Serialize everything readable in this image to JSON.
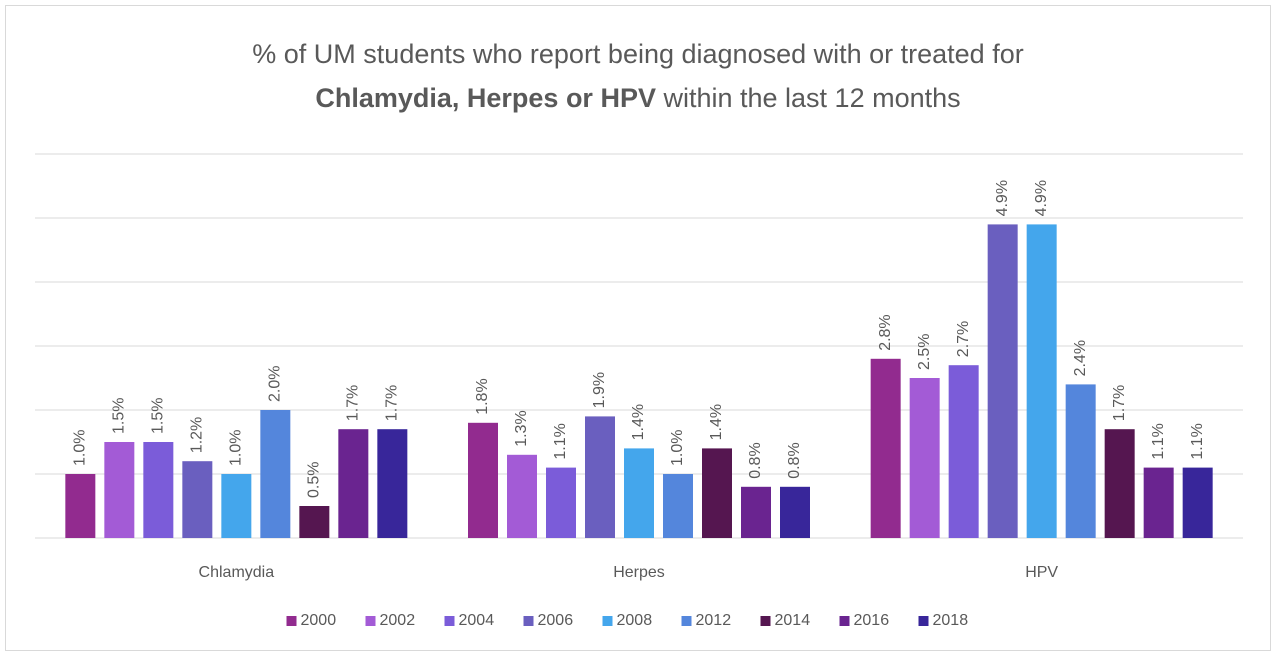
{
  "chart_data": {
    "type": "bar",
    "title": [
      "% of UM students who report being diagnosed with or treated for",
      "Chlamydia, Herpes or HPV",
      " within the last 12 months"
    ],
    "categories": [
      "Chlamydia",
      "Herpes",
      "HPV"
    ],
    "ylim": [
      0,
      6
    ],
    "yticks": [
      0,
      1,
      2,
      3,
      4,
      5,
      6
    ],
    "grid": true,
    "legend": "bottom",
    "series": [
      {
        "name": "2000",
        "color": "#922b8f",
        "values": [
          1.0,
          1.8,
          2.8
        ],
        "value_labels": [
          "1.0%",
          "1.8%",
          "2.8%"
        ]
      },
      {
        "name": "2002",
        "color": "#a35bd6",
        "values": [
          1.5,
          1.3,
          2.5
        ],
        "value_labels": [
          "1.5%",
          "1.3%",
          "2.5%"
        ]
      },
      {
        "name": "2004",
        "color": "#7b5cd9",
        "values": [
          1.5,
          1.1,
          2.7
        ],
        "value_labels": [
          "1.5%",
          "1.1%",
          "2.7%"
        ]
      },
      {
        "name": "2006",
        "color": "#6a5fbf",
        "values": [
          1.2,
          1.9,
          4.9
        ],
        "value_labels": [
          "1.2%",
          "1.9%",
          "4.9%"
        ]
      },
      {
        "name": "2008",
        "color": "#44a6ec",
        "values": [
          1.0,
          1.4,
          4.9
        ],
        "value_labels": [
          "1.0%",
          "1.4%",
          "4.9%"
        ]
      },
      {
        "name": "2012",
        "color": "#5486dc",
        "values": [
          2.0,
          1.0,
          2.4
        ],
        "value_labels": [
          "2.0%",
          "1.0%",
          "2.4%"
        ]
      },
      {
        "name": "2014",
        "color": "#551650",
        "values": [
          0.5,
          1.4,
          1.7
        ],
        "value_labels": [
          "0.5%",
          "1.4%",
          "1.7%"
        ]
      },
      {
        "name": "2016",
        "color": "#6a2490",
        "values": [
          1.7,
          0.8,
          1.1
        ],
        "value_labels": [
          "1.7%",
          "0.8%",
          "1.1%"
        ]
      },
      {
        "name": "2018",
        "color": "#38269a",
        "values": [
          1.7,
          0.8,
          1.1
        ],
        "value_labels": [
          "1.7%",
          "0.8%",
          "1.1%"
        ]
      }
    ]
  }
}
